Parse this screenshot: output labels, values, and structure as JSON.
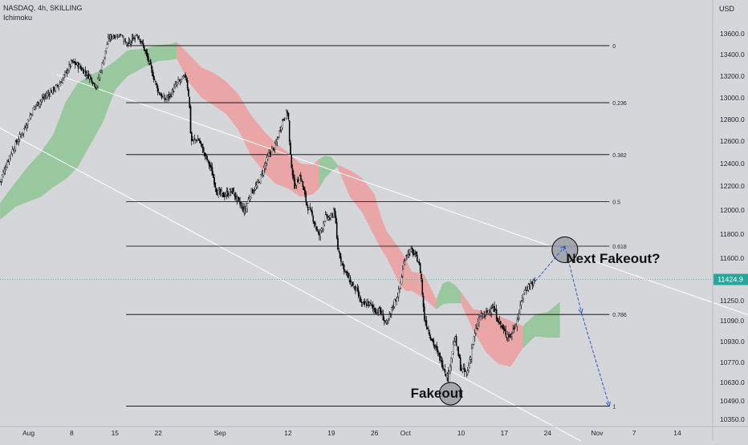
{
  "header": {
    "symbol": "NASDAQ, 4h, SKILLING",
    "indicator": "Ichimoku"
  },
  "price_axis": {
    "currency": "USD",
    "last_price": "11424.9",
    "last_price_color": "#26a69a"
  },
  "colors": {
    "background": "#d4d6da",
    "bull": "#ffffff",
    "bear": "#000000",
    "cloud_bull": "#8bc48f",
    "cloud_bear": "#ef9a9a",
    "channel": "#ffffff",
    "fib": "#000000",
    "projection": "#2a5bc6"
  },
  "chart_data": {
    "type": "candlestick",
    "title": "",
    "ylim": [
      10300,
      13900
    ],
    "y_ticks": [
      13600,
      13400,
      13200,
      13000,
      12800,
      12600,
      12400,
      12200,
      12000,
      11800,
      11600,
      11250,
      11090,
      10930,
      10770,
      10630,
      10490,
      10350
    ],
    "x_ticks": [
      {
        "label": "Aug",
        "day": 0
      },
      {
        "label": "8",
        "day": 7
      },
      {
        "label": "15",
        "day": 14
      },
      {
        "label": "22",
        "day": 21
      },
      {
        "label": "Sep",
        "day": 31
      },
      {
        "label": "12",
        "day": 42
      },
      {
        "label": "19",
        "day": 49
      },
      {
        "label": "26",
        "day": 56
      },
      {
        "label": "Oct",
        "day": 61
      },
      {
        "label": "10",
        "day": 70
      },
      {
        "label": "17",
        "day": 77
      },
      {
        "label": "24",
        "day": 84
      },
      {
        "label": "Nov",
        "day": 92
      },
      {
        "label": "7",
        "day": 98
      },
      {
        "label": "14",
        "day": 105
      }
    ],
    "close_path": [
      [
        -4.6,
        12240
      ],
      [
        -3,
        12480
      ],
      [
        -1,
        12680
      ],
      [
        1,
        12920
      ],
      [
        3,
        13030
      ],
      [
        5,
        13120
      ],
      [
        7,
        13330
      ],
      [
        8,
        13300
      ],
      [
        10,
        13190
      ],
      [
        11,
        13100
      ],
      [
        13,
        13560
      ],
      [
        15,
        13620
      ],
      [
        16,
        13690
      ],
      [
        18,
        13560
      ],
      [
        19,
        13410
      ],
      [
        21,
        13060
      ],
      [
        22,
        12980
      ],
      [
        23,
        13030
      ],
      [
        24,
        13130
      ],
      [
        25.5,
        13200
      ],
      [
        26,
        12990
      ],
      [
        26.3,
        12600
      ],
      [
        27.5,
        12620
      ],
      [
        28.5,
        12480
      ],
      [
        29.5,
        12360
      ],
      [
        30.5,
        12150
      ],
      [
        31.5,
        12120
      ],
      [
        33,
        12160
      ],
      [
        34,
        12060
      ],
      [
        35,
        11990
      ],
      [
        36,
        12150
      ],
      [
        37,
        12200
      ],
      [
        39,
        12490
      ],
      [
        40,
        12560
      ],
      [
        41,
        12780
      ],
      [
        42,
        12880
      ],
      [
        42.3,
        12500
      ],
      [
        43,
        12200
      ],
      [
        44,
        12290
      ],
      [
        45,
        12050
      ],
      [
        46,
        11940
      ],
      [
        47,
        11780
      ],
      [
        48,
        11940
      ],
      [
        49,
        11930
      ],
      [
        49.5,
        12020
      ],
      [
        50,
        11690
      ],
      [
        51,
        11520
      ],
      [
        52,
        11410
      ],
      [
        53,
        11340
      ],
      [
        54,
        11210
      ],
      [
        55,
        11230
      ],
      [
        56,
        11180
      ],
      [
        57,
        11160
      ],
      [
        58,
        11050
      ],
      [
        59,
        11220
      ],
      [
        60,
        11330
      ],
      [
        61,
        11630
      ],
      [
        62,
        11660
      ],
      [
        63,
        11590
      ],
      [
        63.5,
        11470
      ],
      [
        64,
        11120
      ],
      [
        65,
        10980
      ],
      [
        66,
        10860
      ],
      [
        67,
        10760
      ],
      [
        68,
        10650
      ],
      [
        68.3,
        10800
      ],
      [
        69,
        10960
      ],
      [
        70,
        10720
      ],
      [
        71,
        10690
      ],
      [
        72,
        10940
      ],
      [
        73,
        11120
      ],
      [
        74,
        11140
      ],
      [
        75,
        11210
      ],
      [
        76,
        11100
      ],
      [
        77,
        11000
      ],
      [
        78,
        10970
      ],
      [
        79,
        11090
      ],
      [
        79.5,
        11170
      ],
      [
        80,
        11310
      ],
      [
        81,
        11380
      ],
      [
        82,
        11410
      ]
    ],
    "ichimoku_cloud": [
      {
        "trend": "bullish",
        "span_a": [
          [
            -4.6,
            12060
          ],
          [
            -2,
            12240
          ],
          [
            0,
            12380
          ],
          [
            2,
            12500
          ],
          [
            4,
            12660
          ],
          [
            6,
            12960
          ],
          [
            8,
            13140
          ],
          [
            10,
            13210
          ],
          [
            12,
            13260
          ],
          [
            14,
            13340
          ],
          [
            16,
            13440
          ],
          [
            19,
            13460
          ],
          [
            21,
            13490
          ],
          [
            23,
            13500
          ],
          [
            24,
            13520
          ]
        ],
        "span_b": [
          [
            -4.6,
            11920
          ],
          [
            -2,
            12030
          ],
          [
            0,
            12070
          ],
          [
            2,
            12110
          ],
          [
            4,
            12190
          ],
          [
            6,
            12260
          ],
          [
            8,
            12370
          ],
          [
            10,
            12570
          ],
          [
            12,
            12770
          ],
          [
            14,
            13070
          ],
          [
            16,
            13200
          ],
          [
            19,
            13290
          ],
          [
            21,
            13340
          ],
          [
            23,
            13350
          ],
          [
            24,
            13360
          ]
        ]
      },
      {
        "trend": "bearish",
        "span_a": [
          [
            24,
            13520
          ],
          [
            26,
            13400
          ],
          [
            28,
            13280
          ],
          [
            30,
            13230
          ],
          [
            32,
            13150
          ],
          [
            34,
            13030
          ],
          [
            36,
            12840
          ],
          [
            38,
            12700
          ],
          [
            40,
            12580
          ],
          [
            42,
            12500
          ],
          [
            44,
            12400
          ],
          [
            46,
            12390
          ],
          [
            47,
            12440
          ]
        ],
        "span_b": [
          [
            24,
            13360
          ],
          [
            26,
            13140
          ],
          [
            28,
            13000
          ],
          [
            30,
            12930
          ],
          [
            32,
            12850
          ],
          [
            34,
            12700
          ],
          [
            36,
            12470
          ],
          [
            38,
            12330
          ],
          [
            40,
            12220
          ],
          [
            42,
            12180
          ],
          [
            44,
            12110
          ],
          [
            46,
            12130
          ],
          [
            47,
            12180
          ]
        ]
      },
      {
        "trend": "bullish",
        "span_a": [
          [
            47,
            12440
          ],
          [
            48,
            12470
          ],
          [
            49,
            12460
          ],
          [
            50,
            12390
          ]
        ],
        "span_b": [
          [
            47,
            12180
          ],
          [
            48,
            12270
          ],
          [
            49,
            12330
          ],
          [
            50,
            12370
          ]
        ]
      },
      {
        "trend": "bearish",
        "span_a": [
          [
            50,
            12390
          ],
          [
            52,
            12340
          ],
          [
            54,
            12270
          ],
          [
            56,
            12130
          ],
          [
            57,
            11950
          ],
          [
            58,
            11820
          ],
          [
            60,
            11680
          ],
          [
            61,
            11600
          ],
          [
            62,
            11490
          ],
          [
            64,
            11470
          ],
          [
            66,
            11260
          ]
        ],
        "span_b": [
          [
            50,
            12370
          ],
          [
            52,
            12110
          ],
          [
            54,
            11980
          ],
          [
            56,
            11780
          ],
          [
            57,
            11680
          ],
          [
            58,
            11600
          ],
          [
            60,
            11390
          ],
          [
            61,
            11330
          ],
          [
            62,
            11330
          ],
          [
            64,
            11270
          ],
          [
            66,
            11180
          ]
        ]
      },
      {
        "trend": "bullish",
        "span_a": [
          [
            66,
            11260
          ],
          [
            67,
            11390
          ],
          [
            68,
            11410
          ],
          [
            69,
            11380
          ],
          [
            70,
            11320
          ]
        ],
        "span_b": [
          [
            66,
            11180
          ],
          [
            67,
            11220
          ],
          [
            68,
            11230
          ],
          [
            69,
            11230
          ],
          [
            70,
            11230
          ]
        ]
      },
      {
        "trend": "bearish",
        "span_a": [
          [
            70,
            11320
          ],
          [
            72,
            11180
          ],
          [
            74,
            11170
          ],
          [
            76,
            11130
          ],
          [
            78,
            11090
          ],
          [
            80,
            11050
          ]
        ],
        "span_b": [
          [
            70,
            11230
          ],
          [
            72,
            11010
          ],
          [
            74,
            10850
          ],
          [
            76,
            10760
          ],
          [
            78,
            10740
          ],
          [
            80,
            10880
          ]
        ]
      },
      {
        "trend": "bullish",
        "span_a": [
          [
            80,
            11050
          ],
          [
            82,
            11140
          ],
          [
            84,
            11160
          ],
          [
            86,
            11240
          ]
        ],
        "span_b": [
          [
            80,
            10880
          ],
          [
            82,
            10970
          ],
          [
            84,
            10960
          ],
          [
            86,
            10960
          ]
        ]
      }
    ],
    "fibonacci": {
      "start_day": 15.8,
      "end_day": 94,
      "levels": [
        {
          "ratio": "0",
          "price": 13715
        },
        {
          "ratio": "0.236",
          "price": 12955
        },
        {
          "ratio": "0.382",
          "price": 12480
        },
        {
          "ratio": "0.5",
          "price": 12070
        },
        {
          "ratio": "0.618",
          "price": 11700
        },
        {
          "ratio": "0.786",
          "price": 11140
        },
        {
          "ratio": "1",
          "price": 10450
        }
      ]
    },
    "channel_lines": [
      {
        "points": [
          [
            4.5,
            13990
          ],
          [
            118,
            11110
          ]
        ]
      },
      {
        "points": [
          [
            -4.6,
            12720
          ],
          [
            90,
            10170
          ]
        ]
      }
    ],
    "annotations": [
      {
        "text": "Next Fakeout?",
        "day": 87,
        "price": 11600
      },
      {
        "text": "Fakeout",
        "day": 70.3,
        "price": 10550
      }
    ],
    "markers": [
      {
        "day": 86.8,
        "price": 11670
      },
      {
        "day": 68.3,
        "price": 10545
      }
    ],
    "projection_path": [
      [
        82,
        11410
      ],
      [
        86.8,
        11700
      ],
      [
        89.5,
        11150
      ],
      [
        94,
        10450
      ]
    ]
  }
}
